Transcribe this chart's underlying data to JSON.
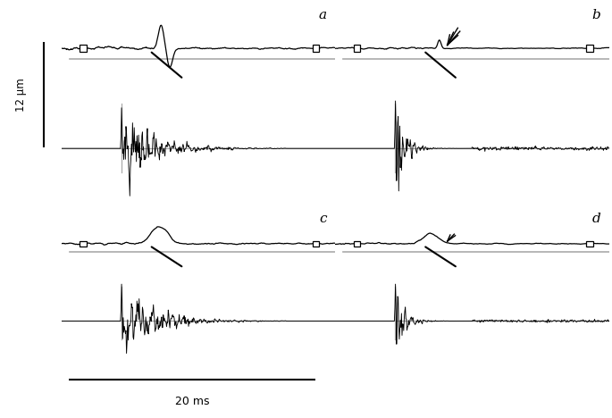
{
  "fig_width": 6.85,
  "fig_height": 4.68,
  "dpi": 100,
  "background": "#ffffff",
  "scale_bar_label": "12 μm",
  "time_label": "20 ms",
  "panel_labels": [
    "a",
    "b",
    "c",
    "d"
  ],
  "gray": "#aaaaaa",
  "black": "#000000",
  "seed": 7
}
